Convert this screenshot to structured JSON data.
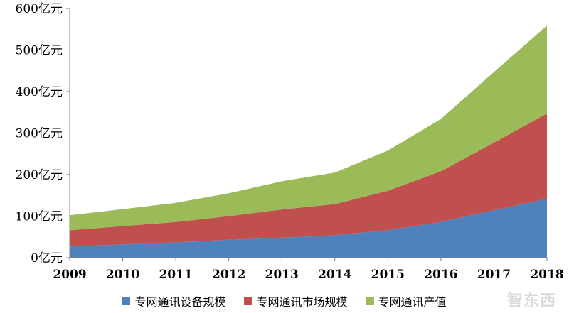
{
  "chart_data": {
    "type": "area",
    "stacked": true,
    "x": [
      "2009",
      "2010",
      "2011",
      "2012",
      "2013",
      "2014",
      "2015",
      "2016",
      "2017",
      "2018"
    ],
    "series": [
      {
        "name": "专网通讯设备规模",
        "color": "#4f81bd",
        "values": [
          27,
          32,
          37,
          43,
          48,
          54,
          66,
          86,
          114,
          142
        ]
      },
      {
        "name": "专网通讯市场规模",
        "color": "#c0504d",
        "values": [
          39,
          44,
          49,
          57,
          68,
          75,
          95,
          122,
          163,
          205
        ]
      },
      {
        "name": "专网通讯产值",
        "color": "#9bbb59",
        "values": [
          36,
          41,
          46,
          55,
          68,
          76,
          97,
          126,
          170,
          212
        ]
      }
    ],
    "ylim": [
      0,
      600
    ],
    "yticks": [
      0,
      100,
      200,
      300,
      400,
      500,
      600
    ],
    "ytick_labels": [
      "0亿元",
      "100亿元",
      "200亿元",
      "300亿元",
      "400亿元",
      "500亿元",
      "600亿元"
    ],
    "legend_position": "bottom",
    "grid": false
  },
  "watermark": "智东西"
}
